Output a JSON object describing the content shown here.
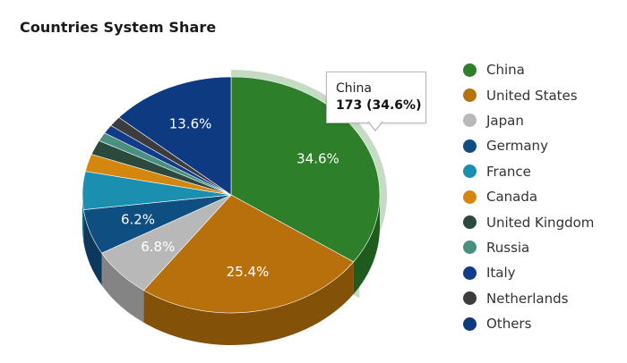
{
  "chart_data": {
    "type": "pie",
    "title": "Countries System Share",
    "slices": [
      {
        "label": "China",
        "value": 173,
        "percent": 34.6,
        "percent_label": "34.6%",
        "color": "#2d7f2a"
      },
      {
        "label": "United States",
        "value": 127,
        "percent": 25.4,
        "percent_label": "25.4%",
        "color": "#b8700c"
      },
      {
        "label": "Japan",
        "value": 34,
        "percent": 6.8,
        "percent_label": "6.8%",
        "color": "#b8b8b8"
      },
      {
        "label": "Germany",
        "value": 31,
        "percent": 6.2,
        "percent_label": "6.2%",
        "color": "#0f4e80"
      },
      {
        "label": "France",
        "value": 26,
        "percent": 5.2,
        "percent_label": "",
        "color": "#1a8fb0"
      },
      {
        "label": "Canada",
        "value": 12,
        "percent": 2.4,
        "percent_label": "",
        "color": "#d4860f"
      },
      {
        "label": "United Kingdom",
        "value": 10,
        "percent": 2.0,
        "percent_label": "",
        "color": "#2a4a3d"
      },
      {
        "label": "Russia",
        "value": 6,
        "percent": 1.2,
        "percent_label": "",
        "color": "#4a9080"
      },
      {
        "label": "Italy",
        "value": 6,
        "percent": 1.2,
        "percent_label": "",
        "color": "#123c8a"
      },
      {
        "label": "Netherlands",
        "value": 7,
        "percent": 1.4,
        "percent_label": "",
        "color": "#3c3c3c"
      },
      {
        "label": "Others",
        "value": 68,
        "percent": 13.6,
        "percent_label": "13.6%",
        "color": "#0d3a80"
      }
    ],
    "legend_placement": "right",
    "highlighted_slice": "China",
    "tooltip": {
      "name": "China",
      "value_text": "173 (34.6%)"
    }
  }
}
